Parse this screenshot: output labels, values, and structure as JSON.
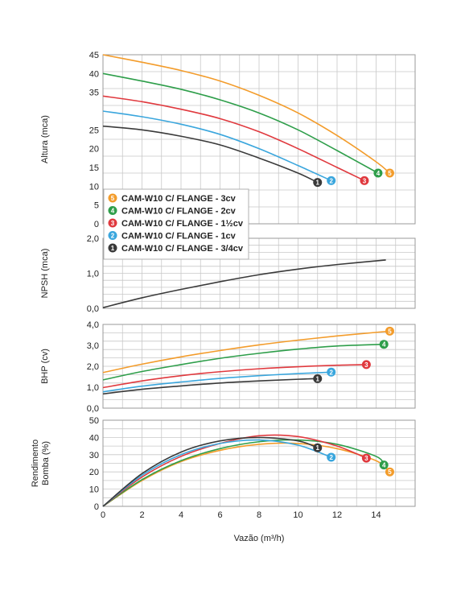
{
  "chart_data": {
    "type": "line",
    "xlabel": "Vazão (m³/h)",
    "x_ticks": [
      "0",
      "2",
      "4",
      "6",
      "8",
      "10",
      "12",
      "14"
    ],
    "xlim": [
      0,
      16
    ],
    "legend": {
      "placement": "bottom-left of top panel",
      "entries": [
        {
          "id": "5",
          "label": "CAM-W10 C/ FLANGE - 3cv",
          "color": "#f39c2b"
        },
        {
          "id": "4",
          "label": "CAM-W10 C/ FLANGE - 2cv",
          "color": "#2e9e4a"
        },
        {
          "id": "3",
          "label": "CAM-W10 C/ FLANGE - 1½cv",
          "color": "#e0393e"
        },
        {
          "id": "2",
          "label": "CAM-W10 C/ FLANGE - 1cv",
          "color": "#3aa6dd"
        },
        {
          "id": "1",
          "label": "CAM-W10 C/ FLANGE - 3/4cv",
          "color": "#3a3a3a"
        }
      ]
    },
    "panels": [
      {
        "name": "altura",
        "ylabel": "Altura (mca)",
        "y_ticks": [
          "0",
          "5",
          "10",
          "15",
          "20",
          "25",
          "35",
          "40",
          "45"
        ],
        "ylim": [
          0,
          45
        ],
        "grid": true,
        "series": [
          {
            "id": "5",
            "color": "#f39c2b",
            "x": [
              0,
              2,
              4,
              6,
              8,
              10,
              12,
              14,
              14.7
            ],
            "y": [
              45,
              43,
              40.8,
              38,
              34.2,
              29.5,
              23.5,
              16.5,
              13.5
            ]
          },
          {
            "id": "4",
            "color": "#2e9e4a",
            "x": [
              0,
              2,
              4,
              6,
              8,
              10,
              12,
              14.1
            ],
            "y": [
              40,
              38,
              35.8,
              33,
              29.5,
              25,
              19.5,
              13.5
            ]
          },
          {
            "id": "3",
            "color": "#e0393e",
            "x": [
              0,
              2,
              4,
              6,
              8,
              10,
              12,
              13.4
            ],
            "y": [
              34,
              32.5,
              30.5,
              28,
              24.5,
              20,
              15,
              11.5
            ]
          },
          {
            "id": "2",
            "color": "#3aa6dd",
            "x": [
              0,
              2,
              4,
              6,
              8,
              10,
              11.7
            ],
            "y": [
              30,
              28.5,
              26.5,
              23.8,
              20,
              15.5,
              11.5
            ]
          },
          {
            "id": "1",
            "color": "#3a3a3a",
            "x": [
              0,
              2,
              4,
              6,
              8,
              10,
              11
            ],
            "y": [
              26,
              25,
              23.3,
              21,
              17.5,
              13.5,
              11
            ]
          }
        ]
      },
      {
        "name": "npsh",
        "ylabel": "NPSH (mca)",
        "y_ticks": [
          "0,0",
          "1,0",
          "2,0"
        ],
        "ylim": [
          0,
          2
        ],
        "grid": true,
        "series": [
          {
            "id": "npsh",
            "color": "#3a3a3a",
            "x": [
              0,
              2,
              4,
              6,
              8,
              10,
              12,
              14.5
            ],
            "y": [
              0.02,
              0.3,
              0.54,
              0.76,
              0.96,
              1.12,
              1.25,
              1.38
            ]
          }
        ]
      },
      {
        "name": "bhp",
        "ylabel": "BHP (cv)",
        "y_ticks": [
          "0,0",
          "1,0",
          "2,0",
          "3,0",
          "4,0"
        ],
        "ylim": [
          0,
          4
        ],
        "grid": true,
        "series": [
          {
            "id": "5",
            "color": "#f39c2b",
            "x": [
              0,
              2,
              4,
              6,
              8,
              10,
              12,
              14,
              14.7
            ],
            "y": [
              1.7,
              2.1,
              2.45,
              2.75,
              3.02,
              3.25,
              3.45,
              3.62,
              3.68
            ]
          },
          {
            "id": "4",
            "color": "#2e9e4a",
            "x": [
              0,
              2,
              4,
              6,
              8,
              10,
              12,
              14.4
            ],
            "y": [
              1.35,
              1.75,
              2.08,
              2.38,
              2.62,
              2.82,
              2.97,
              3.05
            ]
          },
          {
            "id": "3",
            "color": "#e0393e",
            "x": [
              0,
              2,
              4,
              6,
              8,
              10,
              12,
              13.5
            ],
            "y": [
              0.98,
              1.3,
              1.55,
              1.74,
              1.88,
              1.98,
              2.05,
              2.08
            ]
          },
          {
            "id": "2",
            "color": "#3aa6dd",
            "x": [
              0,
              2,
              4,
              6,
              8,
              10,
              11.7
            ],
            "y": [
              0.78,
              1.05,
              1.25,
              1.42,
              1.55,
              1.65,
              1.72
            ]
          },
          {
            "id": "1",
            "color": "#3a3a3a",
            "x": [
              0,
              2,
              4,
              6,
              8,
              10,
              11
            ],
            "y": [
              0.68,
              0.9,
              1.06,
              1.2,
              1.3,
              1.38,
              1.41
            ]
          }
        ]
      },
      {
        "name": "rendimento",
        "ylabel": "Rendimento Bomba (%)",
        "ylabel_lines": [
          "Rendimento",
          "Bomba (%)"
        ],
        "y_ticks": [
          "0",
          "10",
          "20",
          "30",
          "40",
          "50"
        ],
        "ylim": [
          0,
          50
        ],
        "grid": true,
        "series": [
          {
            "id": "5",
            "color": "#f39c2b",
            "x": [
              0,
              2,
              4,
              6,
              8,
              10,
              12,
              14,
              14.7
            ],
            "y": [
              0,
              15,
              26,
              32.5,
              36,
              36.5,
              33.5,
              26.5,
              20
            ]
          },
          {
            "id": "4",
            "color": "#2e9e4a",
            "x": [
              0,
              2,
              4,
              6,
              8,
              10,
              12,
              14,
              14.4
            ],
            "y": [
              0,
              15.5,
              26.5,
              33.5,
              37.5,
              38.5,
              36,
              29,
              24
            ]
          },
          {
            "id": "3",
            "color": "#e0393e",
            "x": [
              0,
              2,
              4,
              6,
              8,
              10,
              12,
              13.5
            ],
            "y": [
              0,
              17,
              29,
              36.5,
              41,
              40.5,
              35,
              28
            ]
          },
          {
            "id": "2",
            "color": "#3aa6dd",
            "x": [
              0,
              2,
              4,
              6,
              8,
              10,
              11.7
            ],
            "y": [
              0,
              18,
              30,
              36.5,
              38.5,
              35.5,
              28.5
            ]
          },
          {
            "id": "1",
            "color": "#3a3a3a",
            "x": [
              0,
              2,
              4,
              6,
              8,
              10,
              11
            ],
            "y": [
              0,
              19,
              31.5,
              38,
              40,
              38,
              34
            ]
          }
        ]
      }
    ]
  }
}
